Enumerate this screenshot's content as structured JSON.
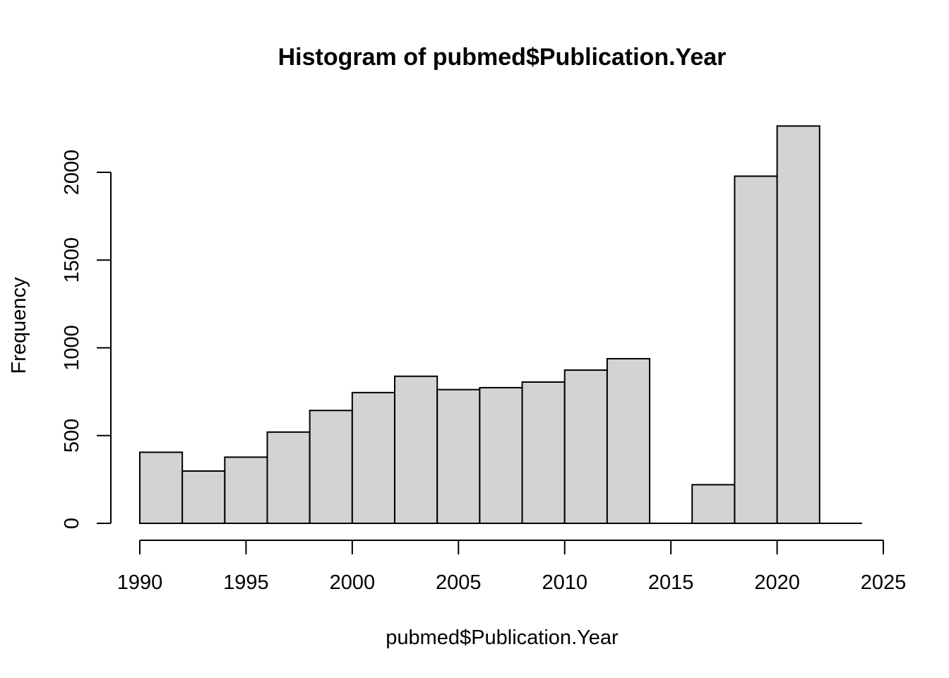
{
  "chart_data": {
    "type": "bar",
    "title": "Histogram of pubmed$Publication.Year",
    "xlabel": "pubmed$Publication.Year",
    "ylabel": "Frequency",
    "xlim": [
      1990,
      2025
    ],
    "ylim": [
      0,
      2270
    ],
    "x_ticks": [
      1990,
      1995,
      2000,
      2005,
      2010,
      2015,
      2020,
      2025
    ],
    "y_ticks": [
      0,
      500,
      1000,
      1500,
      2000
    ],
    "bin_width": 2,
    "bins": [
      {
        "start": 1990,
        "end": 1992,
        "value": 405
      },
      {
        "start": 1992,
        "end": 1994,
        "value": 298
      },
      {
        "start": 1994,
        "end": 1996,
        "value": 377
      },
      {
        "start": 1996,
        "end": 1998,
        "value": 520
      },
      {
        "start": 1998,
        "end": 2000,
        "value": 643
      },
      {
        "start": 2000,
        "end": 2002,
        "value": 745
      },
      {
        "start": 2002,
        "end": 2004,
        "value": 838
      },
      {
        "start": 2004,
        "end": 2006,
        "value": 762
      },
      {
        "start": 2006,
        "end": 2008,
        "value": 773
      },
      {
        "start": 2008,
        "end": 2010,
        "value": 805
      },
      {
        "start": 2010,
        "end": 2012,
        "value": 873
      },
      {
        "start": 2012,
        "end": 2014,
        "value": 938
      },
      {
        "start": 2014,
        "end": 2016,
        "value": 0
      },
      {
        "start": 2016,
        "end": 2018,
        "value": 220
      },
      {
        "start": 2018,
        "end": 2020,
        "value": 1978
      },
      {
        "start": 2020,
        "end": 2022,
        "value": 2264
      },
      {
        "start": 2022,
        "end": 2024,
        "value": 0
      }
    ],
    "grid": false,
    "legend": "none",
    "colors": {
      "bar_fill": "#d3d3d3",
      "bar_stroke": "#000000"
    }
  }
}
